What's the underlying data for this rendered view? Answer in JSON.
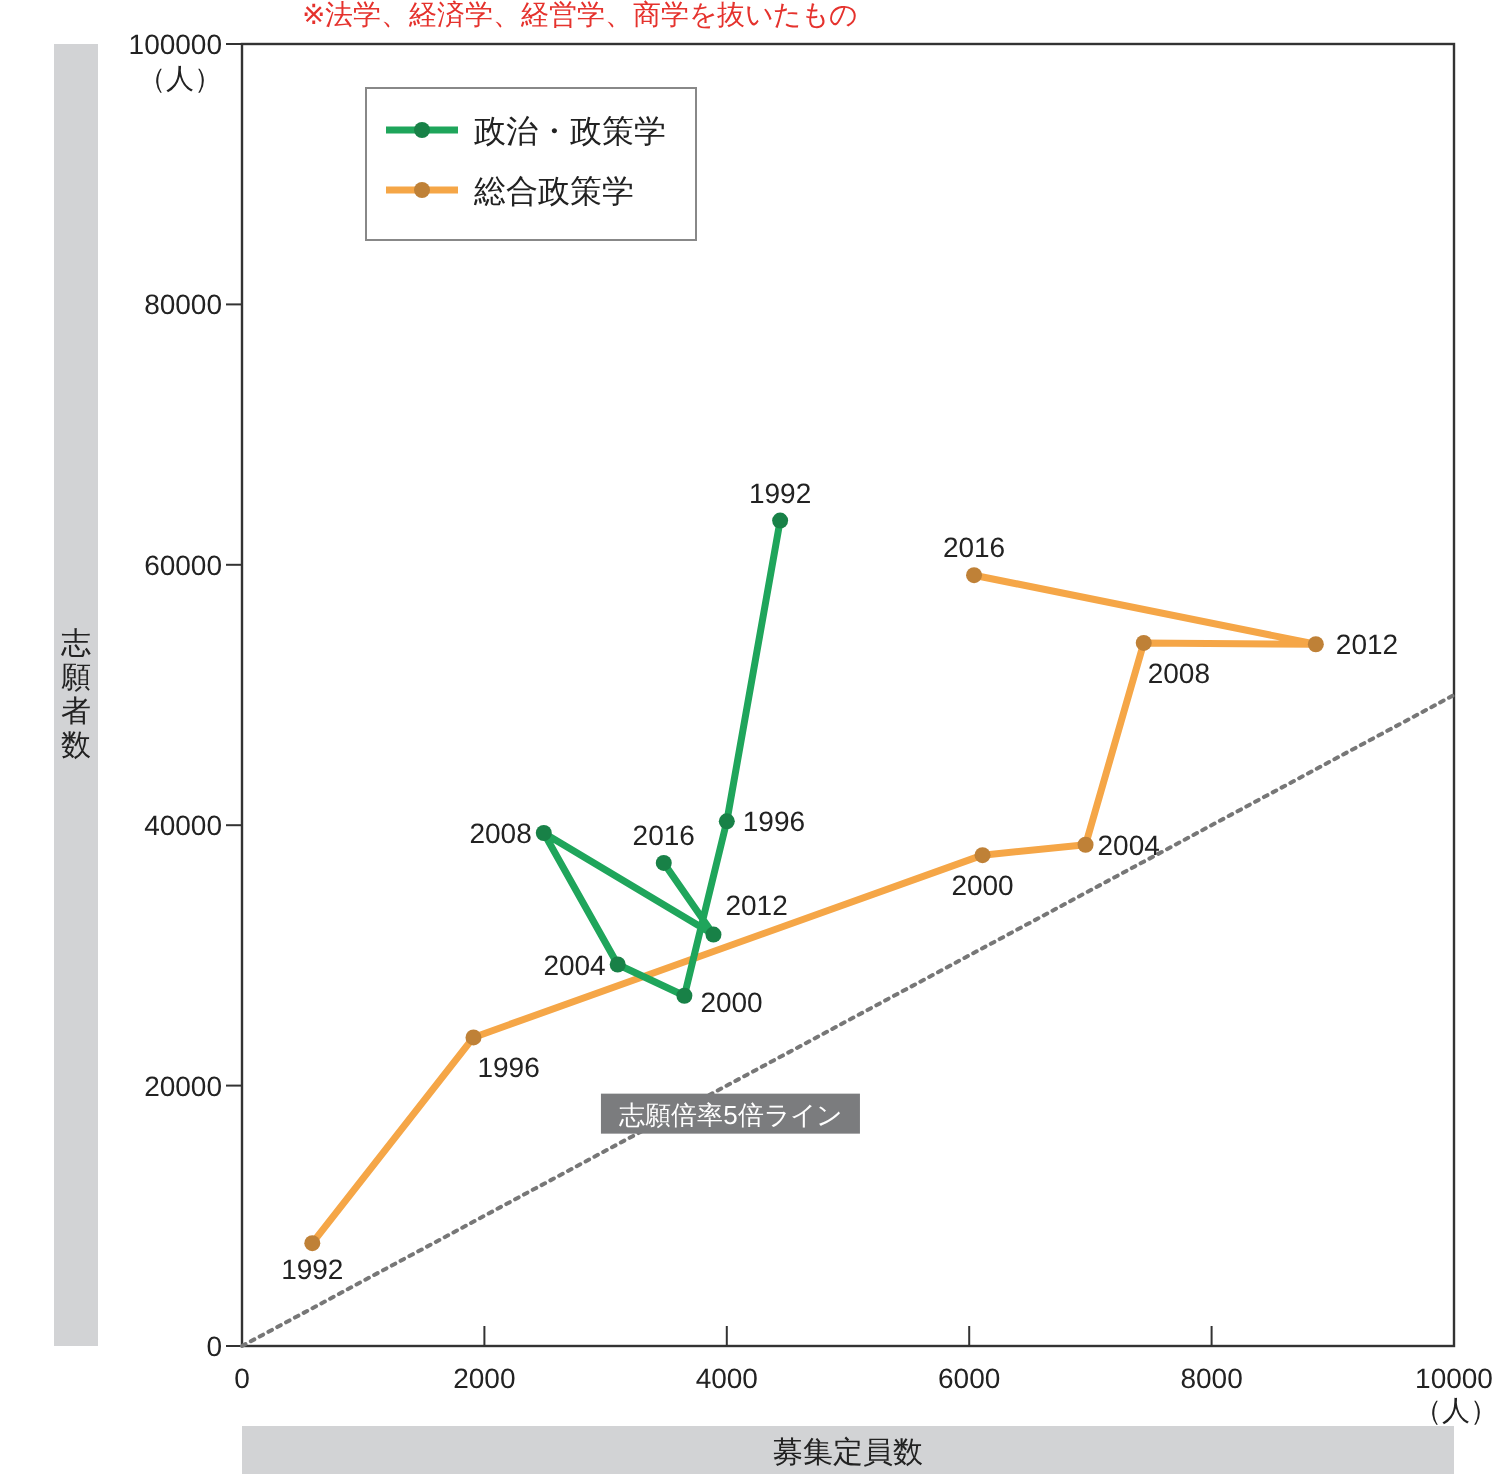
{
  "chart_data": {
    "type": "line",
    "xlabel": "募集定員数",
    "ylabel": "志願者数",
    "xlim": [
      0,
      10000
    ],
    "xticks": [
      0,
      2000,
      4000,
      6000,
      8000,
      10000
    ],
    "ylim": [
      0,
      100000
    ],
    "yticks": [
      0,
      20000,
      40000,
      60000,
      80000,
      100000
    ],
    "grid": false,
    "legend": "top left",
    "marker": "circle",
    "series": [
      {
        "name": "政治・政策学",
        "color": "#1fa55b",
        "x": [
          4440,
          4000,
          3650,
          3100,
          2490,
          3890,
          3480
        ],
        "values": [
          63400,
          40300,
          26900,
          29300,
          39400,
          31600,
          37100
        ]
      },
      {
        "name": "総合政策学",
        "color": "#f5a647",
        "x": [
          580,
          1910,
          6110,
          6960,
          7440,
          8860,
          6040
        ],
        "values": [
          7900,
          23700,
          37700,
          38500,
          54000,
          53900,
          59200
        ]
      },
      {
        "color": "#777777",
        "x": [
          0,
          10000
        ],
        "values": [
          0,
          50000
        ],
        "marker": "none",
        "line_style": "dotted"
      }
    ],
    "annotations": [
      "※法学、経済学、経営学、商学を抜いたもの",
      "（人）",
      "（人）",
      "志願倍率5倍ライン",
      {
        "text": "1992",
        "x": 4440,
        "y": 63400
      },
      {
        "text": "1996",
        "x": 4000,
        "y": 40300
      },
      {
        "text": "2000",
        "x": 3650,
        "y": 26900
      },
      {
        "text": "2004",
        "x": 3100,
        "y": 29300
      },
      {
        "text": "2008",
        "x": 2490,
        "y": 39400
      },
      {
        "text": "2012",
        "x": 3890,
        "y": 31600
      },
      {
        "text": "2016",
        "x": 3480,
        "y": 37100
      },
      {
        "text": "1992",
        "x": 580,
        "y": 7900
      },
      {
        "text": "1996",
        "x": 1910,
        "y": 23700
      },
      {
        "text": "2000",
        "x": 6110,
        "y": 37700
      },
      {
        "text": "2004",
        "x": 6960,
        "y": 38500
      },
      {
        "text": "2008",
        "x": 7440,
        "y": 54000
      },
      {
        "text": "2012",
        "x": 8860,
        "y": 53900
      },
      {
        "text": "2016",
        "x": 6040,
        "y": 59200
      }
    ]
  }
}
